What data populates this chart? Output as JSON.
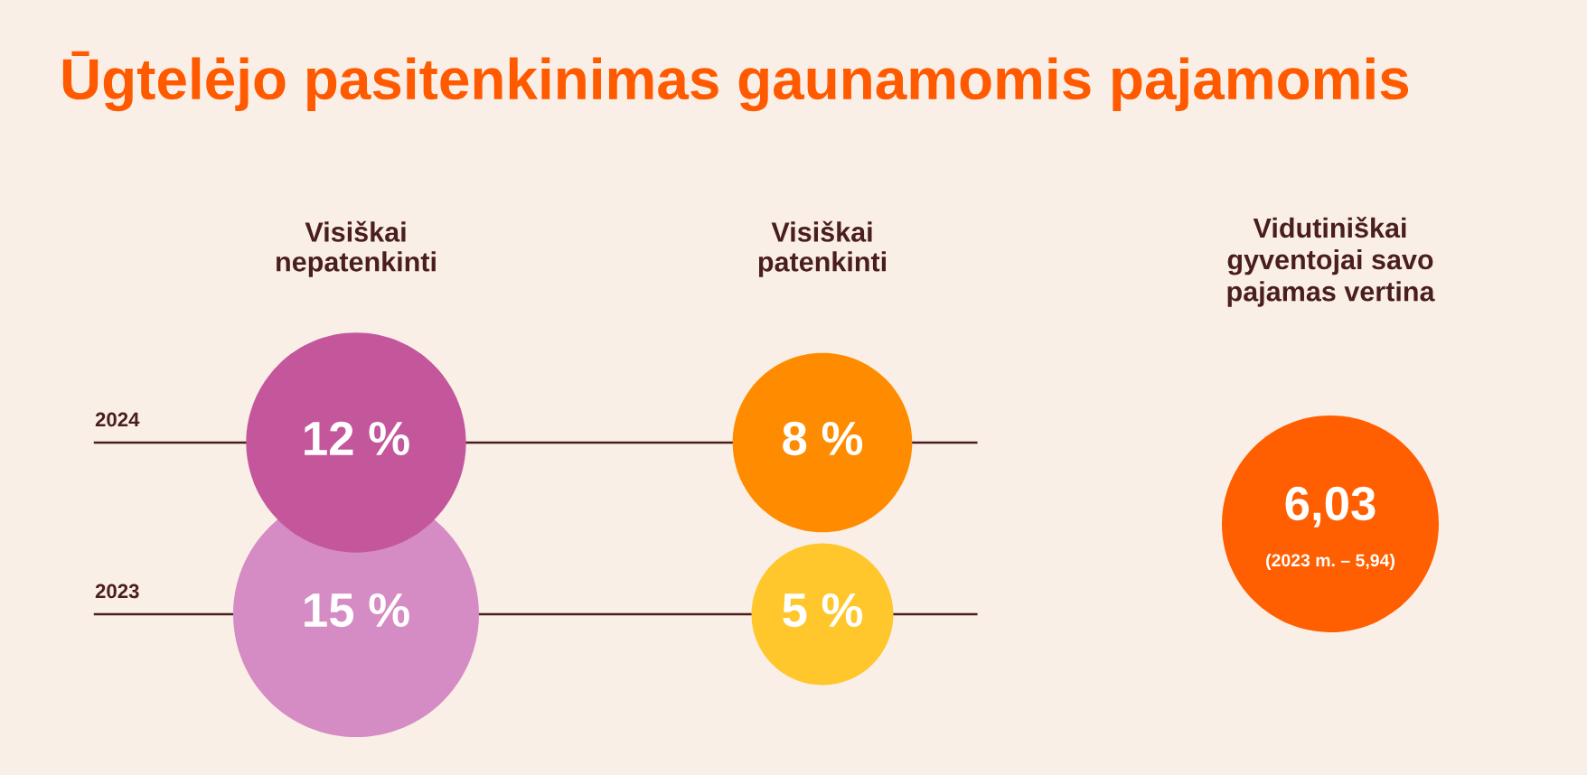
{
  "chart_data": [
    {
      "type": "other",
      "title": "Ūgtelėjo pasitenkinimas gaunamomis pajamomis",
      "categories": [
        "Visiškai\nnepatenkinti",
        "Visiškai\npatenkinti"
      ],
      "annotations": [
        "2024",
        "2023"
      ],
      "series": [
        {
          "values": [
            12,
            8
          ],
          "colors": [
            "#c4579c",
            "#ff8c00"
          ],
          "value_labels": [
            "12 %",
            "8 %"
          ]
        },
        {
          "values": [
            15,
            5
          ],
          "colors": [
            "#d58bc4",
            "#ffc72c"
          ],
          "value_labels": [
            "15 %",
            "5 %"
          ]
        }
      ]
    },
    {
      "type": "other",
      "title": "Vidutiniškai\ngyventojai savo\npajamas vertina",
      "colors": [
        "#ff5f00"
      ],
      "annotations": [
        "6,03",
        "(2023 m. – 5,94)"
      ]
    }
  ]
}
